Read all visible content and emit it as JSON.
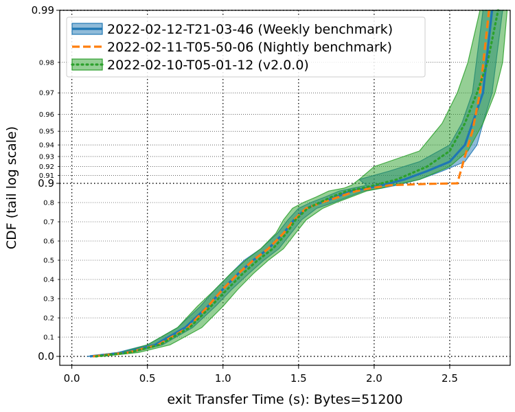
{
  "chart_data": {
    "type": "line",
    "title": "",
    "xlabel": "exit Transfer Time (s): Bytes=51200",
    "ylabel": "CDF (tail log scale)",
    "xlim": [
      -0.08,
      2.9
    ],
    "x_ticks": [
      "0.0",
      "0.5",
      "1.0",
      "1.5",
      "2.0",
      "2.5"
    ],
    "y_major_ticks": [
      "0.0",
      "0.9",
      "0.99"
    ],
    "y_minor_ticks": [
      "0.1",
      "0.2",
      "0.3",
      "0.4",
      "0.5",
      "0.6",
      "0.7",
      "0.8",
      "0.91",
      "0.92",
      "0.93",
      "0.94",
      "0.95",
      "0.96",
      "0.97",
      "0.98"
    ],
    "y_scale": "tail-log (linear 0-0.9, log-tail 0.9-0.99)",
    "grid": true,
    "legend_position": "top-left",
    "series": [
      {
        "name": "2022-02-12-T21-03-46 (Weekly benchmark)",
        "color": "#1f77b4",
        "line_style": "solid",
        "points": [
          [
            0.12,
            0.0
          ],
          [
            0.35,
            0.02
          ],
          [
            0.55,
            0.06
          ],
          [
            0.75,
            0.15
          ],
          [
            0.9,
            0.26
          ],
          [
            1.0,
            0.35
          ],
          [
            1.1,
            0.43
          ],
          [
            1.2,
            0.5
          ],
          [
            1.3,
            0.56
          ],
          [
            1.4,
            0.64
          ],
          [
            1.47,
            0.71
          ],
          [
            1.55,
            0.77
          ],
          [
            1.65,
            0.8
          ],
          [
            1.75,
            0.83
          ],
          [
            1.85,
            0.86
          ],
          [
            1.95,
            0.875
          ],
          [
            2.05,
            0.89
          ],
          [
            2.2,
            0.905
          ],
          [
            2.35,
            0.915
          ],
          [
            2.5,
            0.925
          ],
          [
            2.6,
            0.94
          ],
          [
            2.65,
            0.955
          ],
          [
            2.72,
            0.97
          ],
          [
            2.78,
            0.99
          ]
        ],
        "band_lower": [
          [
            0.15,
            0.0
          ],
          [
            0.4,
            0.02
          ],
          [
            0.6,
            0.06
          ],
          [
            0.8,
            0.15
          ],
          [
            0.95,
            0.26
          ],
          [
            1.06,
            0.35
          ],
          [
            1.17,
            0.43
          ],
          [
            1.27,
            0.5
          ],
          [
            1.37,
            0.56
          ],
          [
            1.45,
            0.64
          ],
          [
            1.52,
            0.71
          ],
          [
            1.62,
            0.77
          ],
          [
            1.73,
            0.8
          ],
          [
            1.83,
            0.83
          ],
          [
            1.93,
            0.86
          ],
          [
            2.05,
            0.875
          ],
          [
            2.15,
            0.89
          ],
          [
            2.3,
            0.905
          ],
          [
            2.45,
            0.915
          ],
          [
            2.6,
            0.925
          ],
          [
            2.68,
            0.94
          ],
          [
            2.72,
            0.955
          ],
          [
            2.78,
            0.97
          ],
          [
            2.85,
            0.99
          ]
        ],
        "band_upper": [
          [
            0.1,
            0.0
          ],
          [
            0.3,
            0.02
          ],
          [
            0.5,
            0.06
          ],
          [
            0.7,
            0.15
          ],
          [
            0.85,
            0.26
          ],
          [
            0.95,
            0.35
          ],
          [
            1.05,
            0.43
          ],
          [
            1.14,
            0.5
          ],
          [
            1.25,
            0.56
          ],
          [
            1.36,
            0.64
          ],
          [
            1.43,
            0.71
          ],
          [
            1.5,
            0.77
          ],
          [
            1.58,
            0.8
          ],
          [
            1.68,
            0.83
          ],
          [
            1.77,
            0.86
          ],
          [
            1.86,
            0.875
          ],
          [
            1.95,
            0.89
          ],
          [
            1.9,
            0.905
          ],
          [
            2.1,
            0.915
          ],
          [
            2.3,
            0.925
          ],
          [
            2.5,
            0.94
          ],
          [
            2.58,
            0.955
          ],
          [
            2.65,
            0.97
          ],
          [
            2.72,
            0.99
          ]
        ]
      },
      {
        "name": "2022-02-11-T05-50-06 (Nightly benchmark)",
        "color": "#ff7f0e",
        "line_style": "dashed",
        "points": [
          [
            0.14,
            0.0
          ],
          [
            0.37,
            0.02
          ],
          [
            0.57,
            0.06
          ],
          [
            0.77,
            0.15
          ],
          [
            0.9,
            0.26
          ],
          [
            1.0,
            0.35
          ],
          [
            1.1,
            0.43
          ],
          [
            1.2,
            0.5
          ],
          [
            1.3,
            0.56
          ],
          [
            1.4,
            0.64
          ],
          [
            1.47,
            0.71
          ],
          [
            1.55,
            0.77
          ],
          [
            1.65,
            0.8
          ],
          [
            1.77,
            0.83
          ],
          [
            1.88,
            0.86
          ],
          [
            1.98,
            0.875
          ],
          [
            2.1,
            0.89
          ],
          [
            2.35,
            0.897
          ],
          [
            2.55,
            0.9
          ],
          [
            2.6,
            0.93
          ],
          [
            2.65,
            0.95
          ],
          [
            2.7,
            0.97
          ],
          [
            2.76,
            0.99
          ]
        ]
      },
      {
        "name": "2022-02-10-T05-01-12 (v2.0.0)",
        "color": "#2ca02c",
        "line_style": "dotted",
        "points": [
          [
            0.16,
            0.0
          ],
          [
            0.38,
            0.02
          ],
          [
            0.58,
            0.06
          ],
          [
            0.78,
            0.15
          ],
          [
            0.92,
            0.26
          ],
          [
            1.03,
            0.35
          ],
          [
            1.13,
            0.43
          ],
          [
            1.23,
            0.5
          ],
          [
            1.33,
            0.56
          ],
          [
            1.42,
            0.64
          ],
          [
            1.48,
            0.71
          ],
          [
            1.56,
            0.77
          ],
          [
            1.64,
            0.8
          ],
          [
            1.72,
            0.83
          ],
          [
            1.82,
            0.86
          ],
          [
            1.92,
            0.875
          ],
          [
            2.0,
            0.89
          ],
          [
            2.15,
            0.905
          ],
          [
            2.35,
            0.92
          ],
          [
            2.5,
            0.935
          ],
          [
            2.6,
            0.955
          ],
          [
            2.68,
            0.97
          ],
          [
            2.75,
            0.98
          ],
          [
            2.82,
            0.99
          ]
        ],
        "band_lower": [
          [
            0.2,
            0.0
          ],
          [
            0.44,
            0.02
          ],
          [
            0.65,
            0.06
          ],
          [
            0.86,
            0.15
          ],
          [
            1.0,
            0.26
          ],
          [
            1.1,
            0.35
          ],
          [
            1.2,
            0.43
          ],
          [
            1.3,
            0.5
          ],
          [
            1.4,
            0.56
          ],
          [
            1.48,
            0.64
          ],
          [
            1.55,
            0.71
          ],
          [
            1.66,
            0.77
          ],
          [
            1.75,
            0.8
          ],
          [
            1.85,
            0.83
          ],
          [
            1.95,
            0.86
          ],
          [
            2.05,
            0.875
          ],
          [
            2.12,
            0.89
          ],
          [
            2.3,
            0.905
          ],
          [
            2.5,
            0.92
          ],
          [
            2.62,
            0.935
          ],
          [
            2.72,
            0.955
          ],
          [
            2.8,
            0.97
          ],
          [
            2.85,
            0.98
          ],
          [
            2.88,
            0.99
          ]
        ],
        "band_upper": [
          [
            0.12,
            0.0
          ],
          [
            0.32,
            0.02
          ],
          [
            0.5,
            0.06
          ],
          [
            0.7,
            0.15
          ],
          [
            0.83,
            0.26
          ],
          [
            0.95,
            0.35
          ],
          [
            1.05,
            0.43
          ],
          [
            1.15,
            0.5
          ],
          [
            1.25,
            0.56
          ],
          [
            1.35,
            0.64
          ],
          [
            1.4,
            0.71
          ],
          [
            1.46,
            0.77
          ],
          [
            1.53,
            0.8
          ],
          [
            1.62,
            0.83
          ],
          [
            1.7,
            0.86
          ],
          [
            1.8,
            0.875
          ],
          [
            1.85,
            0.89
          ],
          [
            1.9,
            0.905
          ],
          [
            2.0,
            0.92
          ],
          [
            2.3,
            0.935
          ],
          [
            2.45,
            0.955
          ],
          [
            2.55,
            0.97
          ],
          [
            2.62,
            0.98
          ],
          [
            2.7,
            0.99
          ]
        ]
      }
    ]
  }
}
